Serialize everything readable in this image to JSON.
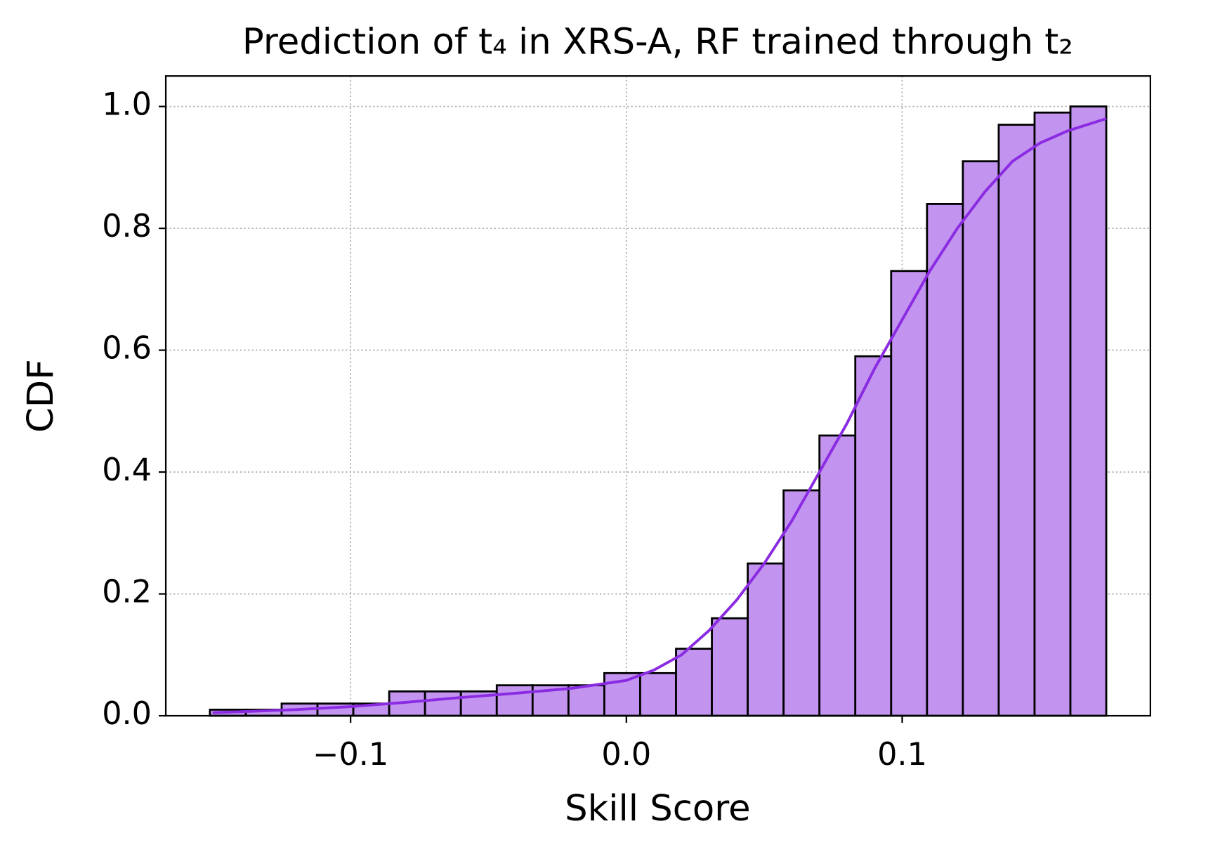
{
  "chart_data": {
    "type": "histogram",
    "title": "Prediction of t₄ in XRS-A, RF trained through t₂",
    "x_label": "Skill Score",
    "y_label": "CDF",
    "bins": [
      -0.151,
      -0.138,
      -0.125,
      -0.112,
      -0.099,
      -0.086,
      -0.073,
      -0.06,
      -0.047,
      -0.034,
      -0.021,
      -0.008,
      0.005,
      0.018,
      0.031,
      0.044,
      0.057,
      0.07,
      0.083,
      0.096,
      0.109,
      0.122,
      0.135,
      0.148,
      0.161,
      0.174
    ],
    "values": [
      0.01,
      0.01,
      0.02,
      0.02,
      0.02,
      0.04,
      0.04,
      0.04,
      0.05,
      0.05,
      0.05,
      0.07,
      0.07,
      0.11,
      0.16,
      0.25,
      0.37,
      0.46,
      0.59,
      0.73,
      0.84,
      0.91,
      0.97,
      0.99,
      1.0
    ],
    "color": "#c293ef",
    "edge_color": "#000000",
    "kde": {
      "x": [
        -0.15,
        -0.12,
        -0.1,
        -0.08,
        -0.06,
        -0.04,
        -0.02,
        0.0,
        0.01,
        0.02,
        0.03,
        0.04,
        0.05,
        0.06,
        0.07,
        0.08,
        0.09,
        0.1,
        0.11,
        0.12,
        0.13,
        0.14,
        0.15,
        0.16,
        0.174
      ],
      "values": [
        0.005,
        0.01,
        0.015,
        0.022,
        0.03,
        0.037,
        0.045,
        0.058,
        0.075,
        0.1,
        0.14,
        0.19,
        0.25,
        0.32,
        0.4,
        0.48,
        0.57,
        0.65,
        0.73,
        0.8,
        0.86,
        0.91,
        0.94,
        0.96,
        0.98
      ],
      "color": "#8a2be2"
    },
    "xlim": [
      -0.167,
      0.19
    ],
    "ylim": [
      0,
      1.05
    ],
    "xticks": [
      {
        "value": -0.1,
        "label": "−0.1"
      },
      {
        "value": 0,
        "label": "0.0"
      },
      {
        "value": 0.1,
        "label": "0.1"
      }
    ],
    "yticks": [
      {
        "value": 0,
        "label": "0.0"
      },
      0.2,
      0.4,
      0.6,
      0.8,
      {
        "value": 1,
        "label": "1.0"
      }
    ],
    "grid": true
  }
}
